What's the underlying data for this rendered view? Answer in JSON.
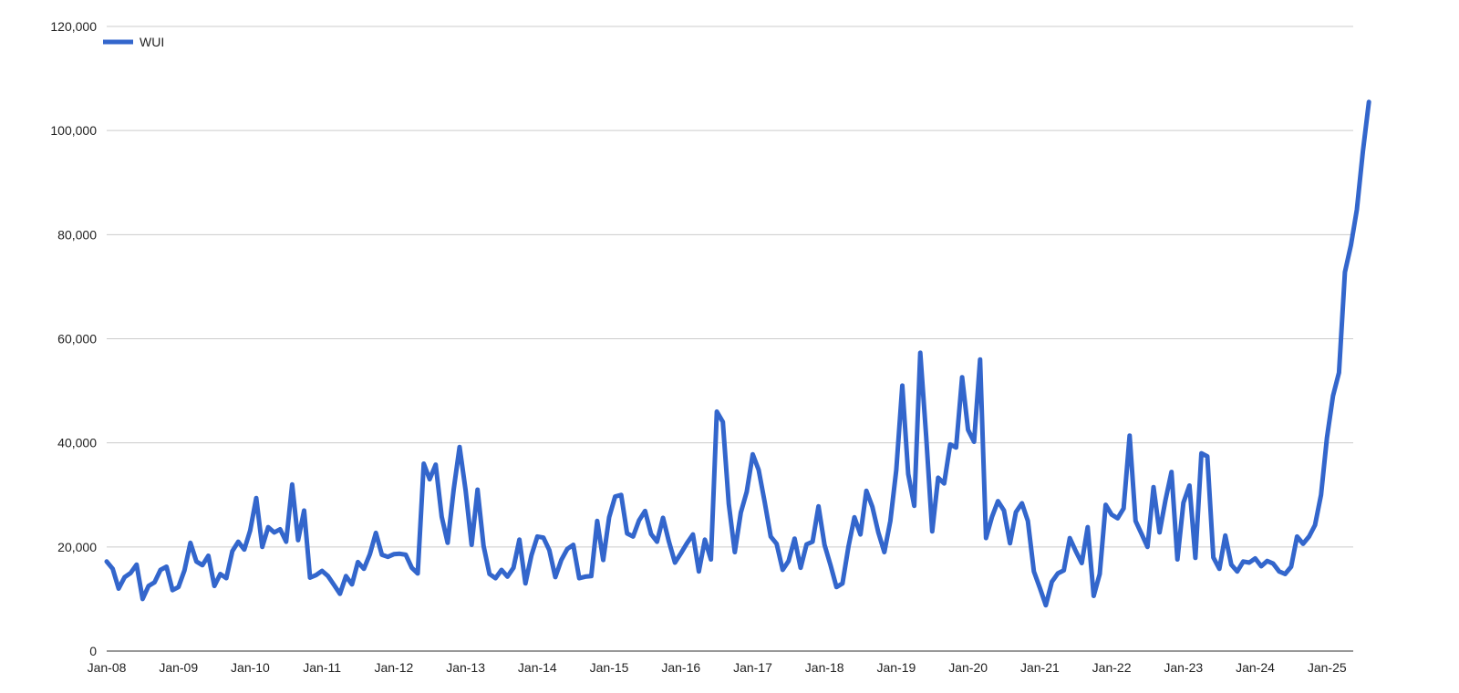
{
  "chart_data": {
    "type": "line",
    "title": "",
    "xlabel": "",
    "ylabel": "",
    "legend_position": "top-left",
    "grid": true,
    "ylim": [
      0,
      120000
    ],
    "y_ticks": [
      0,
      20000,
      40000,
      60000,
      80000,
      100000,
      120000
    ],
    "y_tick_labels": [
      "0",
      "20,000",
      "40,000",
      "60,000",
      "80,000",
      "100,000",
      "120,000"
    ],
    "x_tick_labels": [
      "Jan-08",
      "Jan-09",
      "Jan-10",
      "Jan-11",
      "Jan-12",
      "Jan-13",
      "Jan-14",
      "Jan-15",
      "Jan-16",
      "Jan-17",
      "Jan-18",
      "Jan-19",
      "Jan-20",
      "Jan-21",
      "Jan-22",
      "Jan-23",
      "Jan-24",
      "Jan-25"
    ],
    "x_start": "2008-01",
    "series": [
      {
        "name": "WUI",
        "color": "#3366cc",
        "values": [
          17200,
          15800,
          12000,
          14200,
          15000,
          16600,
          10000,
          12500,
          13200,
          15600,
          16200,
          11700,
          12300,
          15500,
          20800,
          17200,
          16500,
          18300,
          12500,
          14800,
          14000,
          19200,
          21000,
          19500,
          23200,
          29400,
          20000,
          23800,
          22800,
          23400,
          21000,
          32000,
          21300,
          27000,
          14100,
          14600,
          15400,
          14400,
          12700,
          11000,
          14400,
          12800,
          17100,
          15800,
          18600,
          22700,
          18500,
          18100,
          18600,
          18700,
          18500,
          16000,
          14900,
          36000,
          33000,
          35800,
          25800,
          20800,
          31000,
          39200,
          30900,
          20400,
          31000,
          20200,
          14800,
          14000,
          15600,
          14300,
          16000,
          21400,
          13000,
          18400,
          22000,
          21800,
          19400,
          14200,
          17500,
          19600,
          20400,
          14000,
          14300,
          14400,
          25000,
          17500,
          25700,
          29700,
          30000,
          22600,
          22000,
          25100,
          26900,
          22500,
          21000,
          25600,
          21000,
          17000,
          18800,
          20700,
          22400,
          15300,
          21400,
          17600,
          46000,
          44000,
          28300,
          19000,
          26600,
          30600,
          37800,
          34800,
          28600,
          22000,
          20600,
          15600,
          17300,
          21600,
          16000,
          20500,
          21000,
          27800,
          20400,
          16500,
          12300,
          13000,
          20000,
          25700,
          22400,
          30800,
          27700,
          22800,
          19000,
          25000,
          34800,
          51000,
          34000,
          27900,
          57300,
          41200,
          23000,
          33300,
          32200,
          39700,
          39100,
          52600,
          42500,
          40200,
          56000,
          21700,
          25800,
          28800,
          27000,
          20700,
          26700,
          28400,
          25000,
          15300,
          12100,
          8800,
          13300,
          14900,
          15500,
          21700,
          19200,
          16900,
          23800,
          10600,
          14800,
          28100,
          26200,
          25500,
          27400,
          41400,
          25000,
          22500,
          20000,
          31500,
          22800,
          29000,
          34400,
          17600,
          28500,
          31800,
          17900,
          38000,
          37400,
          18000,
          15800,
          22200,
          16600,
          15300,
          17200,
          17000,
          17800,
          16300,
          17300,
          16800,
          15300,
          14800,
          16200,
          22000,
          20600,
          22000,
          24200,
          30000,
          41000,
          49000,
          53500,
          72800,
          78000,
          84800,
          96000,
          105500
        ]
      }
    ]
  }
}
